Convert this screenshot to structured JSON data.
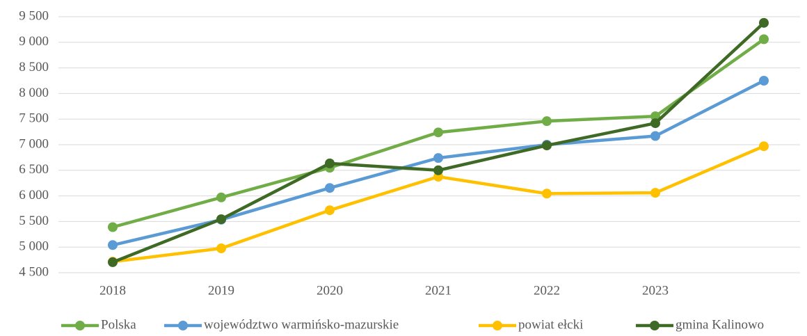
{
  "chart_data": {
    "type": "line",
    "categories": [
      "2018",
      "2019",
      "2020",
      "2021",
      "2022",
      "2023",
      null
    ],
    "series": [
      {
        "name": "Polska",
        "color": "#70ad47",
        "values": [
          5390,
          5970,
          6550,
          7240,
          7460,
          7555,
          9060
        ]
      },
      {
        "name": "województwo warmińsko-mazurskie",
        "color": "#5b9bd5",
        "values": [
          5040,
          5535,
          6155,
          6740,
          7000,
          7170,
          8250
        ]
      },
      {
        "name": "powiat ełcki",
        "color": "#ffc000",
        "values": [
          4715,
          4975,
          5720,
          6375,
          6045,
          6060,
          6970
        ]
      },
      {
        "name": "gmina Kalinowo",
        "color": "#3e6a26",
        "values": [
          4705,
          5545,
          6635,
          6500,
          6985,
          7420,
          9380
        ]
      }
    ],
    "ylim": [
      4500,
      9500
    ],
    "yticks": [
      {
        "value": 4500,
        "label": "4 500"
      },
      {
        "value": 5000,
        "label": "5 000"
      },
      {
        "value": 5500,
        "label": "5 500"
      },
      {
        "value": 6000,
        "label": "6 000"
      },
      {
        "value": 6500,
        "label": "6 500"
      },
      {
        "value": 7000,
        "label": "7 000"
      },
      {
        "value": 7500,
        "label": "7 500"
      },
      {
        "value": 8000,
        "label": "8 000"
      },
      {
        "value": 8500,
        "label": "8 500"
      },
      {
        "value": 9000,
        "label": "9 000"
      },
      {
        "value": 9500,
        "label": "9 500"
      }
    ],
    "grid": true,
    "legend": "bottom"
  }
}
